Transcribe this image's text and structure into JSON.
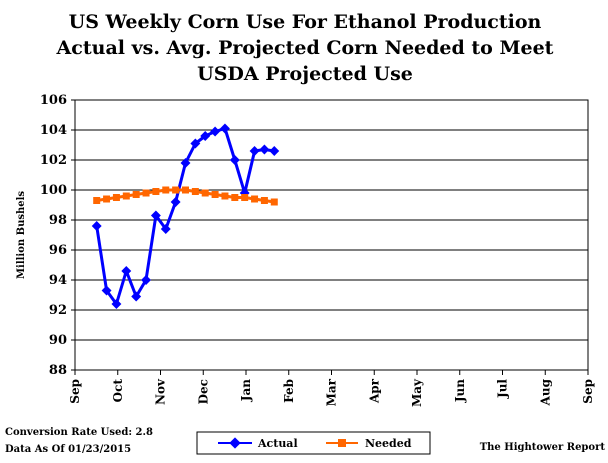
{
  "chart_data": {
    "type": "line",
    "title_lines": [
      "US Weekly  Corn Use For Ethanol Production",
      "Actual vs. Avg. Projected Corn Needed to Meet",
      "USDA Projected Use"
    ],
    "ylabel": "Million Bushels",
    "xlabel": "",
    "ylim": [
      88,
      106
    ],
    "yticks": [
      88,
      90,
      92,
      94,
      96,
      98,
      100,
      102,
      104,
      106
    ],
    "xtick_labels": [
      "Sep",
      "Oct",
      "Nov",
      "Dec",
      "Jan",
      "Feb",
      "Mar",
      "Apr",
      "May",
      "Jun",
      "Jul",
      "Aug",
      "Sep"
    ],
    "grid": "horizontal",
    "legend_position": "bottom",
    "series": [
      {
        "name": "Actual",
        "color": "#0000ff",
        "marker": "diamond",
        "values": [
          97.6,
          93.3,
          92.4,
          94.6,
          92.9,
          94.0,
          98.3,
          97.4,
          99.2,
          101.8,
          103.1,
          103.6,
          103.9,
          104.1,
          102.0,
          99.8,
          102.6,
          102.7,
          102.6
        ]
      },
      {
        "name": "Needed",
        "color": "#ff6600",
        "marker": "square",
        "values": [
          99.3,
          99.4,
          99.5,
          99.6,
          99.7,
          99.8,
          99.9,
          100.0,
          100.0,
          100.0,
          99.9,
          99.8,
          99.7,
          99.6,
          99.5,
          99.5,
          99.4,
          99.3,
          99.2
        ]
      }
    ]
  },
  "footer": {
    "conversion_rate": "Conversion Rate Used: 2.8",
    "data_as_of": "Data As Of 01/23/2015",
    "source": "The Hightower Report"
  }
}
